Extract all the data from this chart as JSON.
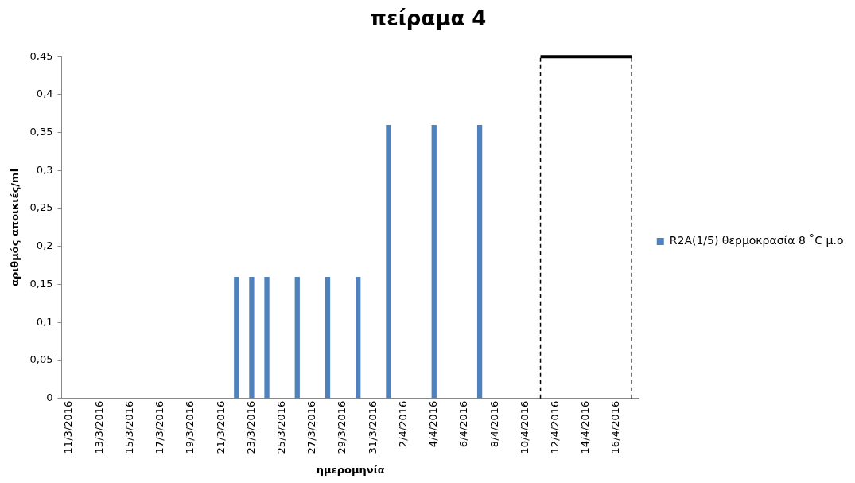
{
  "chart_data": {
    "type": "bar",
    "title": "πείραμα 4",
    "xlabel": "ημερομηνία",
    "ylabel": "αριθμός αποικιές/ml",
    "x": [
      "2016-03-22",
      "2016-03-23",
      "2016-03-24",
      "2016-03-26",
      "2016-03-28",
      "2016-03-30",
      "2016-04-01",
      "2016-04-04",
      "2016-04-07"
    ],
    "series": [
      {
        "name": "R2A(1/5) θερμοκρασία 8 ˚C μ.ο",
        "color": "#4f81bd",
        "values": [
          0.16,
          0.16,
          0.16,
          0.16,
          0.16,
          0.16,
          0.36,
          0.36,
          0.36
        ]
      },
      {
        "type": "line",
        "color": "#000000",
        "x": [
          "2016-04-11",
          "2016-04-17"
        ],
        "values": [
          0.45,
          0.45
        ],
        "marker": "none"
      }
    ],
    "xlim": [
      "2016-03-10T12:00",
      "2016-04-17T12:00"
    ],
    "xticks": [
      {
        "value": "2016-03-11",
        "label": "11/3/2016"
      },
      {
        "value": "2016-03-13",
        "label": "13/3/2016"
      },
      {
        "value": "2016-03-15",
        "label": "15/3/2016"
      },
      {
        "value": "2016-03-17",
        "label": "17/3/2016"
      },
      {
        "value": "2016-03-19",
        "label": "19/3/2016"
      },
      {
        "value": "2016-03-21",
        "label": "21/3/2016"
      },
      {
        "value": "2016-03-23",
        "label": "23/3/2016"
      },
      {
        "value": "2016-03-25",
        "label": "25/3/2016"
      },
      {
        "value": "2016-03-27",
        "label": "27/3/2016"
      },
      {
        "value": "2016-03-29",
        "label": "29/3/2016"
      },
      {
        "value": "2016-03-31",
        "label": "31/3/2016"
      },
      {
        "value": "2016-04-02",
        "label": "2/4/2016"
      },
      {
        "value": "2016-04-04",
        "label": "4/4/2016"
      },
      {
        "value": "2016-04-06",
        "label": "6/4/2016"
      },
      {
        "value": "2016-04-08",
        "label": "8/4/2016"
      },
      {
        "value": "2016-04-10",
        "label": "10/4/2016"
      },
      {
        "value": "2016-04-12",
        "label": "12/4/2016"
      },
      {
        "value": "2016-04-14",
        "label": "14/4/2016"
      },
      {
        "value": "2016-04-16",
        "label": "16/4/2016"
      }
    ],
    "ylim": [
      0,
      0.45
    ],
    "yticks": [
      {
        "value": 0,
        "label": "0"
      },
      {
        "value": 0.05,
        "label": "0,05"
      },
      {
        "value": 0.1,
        "label": "0,1"
      },
      {
        "value": 0.15,
        "label": "0,15"
      },
      {
        "value": 0.2,
        "label": "0,2"
      },
      {
        "value": 0.25,
        "label": "0,25"
      },
      {
        "value": 0.3,
        "label": "0,3"
      },
      {
        "value": 0.35,
        "label": "0,35"
      },
      {
        "value": 0.4,
        "label": "0,4"
      },
      {
        "value": 0.45,
        "label": "0,45"
      }
    ],
    "ref_lines": [
      {
        "axis": "x",
        "value": "2016-04-11",
        "color": "#000000",
        "line_style": "dashed"
      },
      {
        "axis": "x",
        "value": "2016-04-17",
        "color": "#000000",
        "line_style": "dashed"
      }
    ],
    "grid": false,
    "legend": "right"
  }
}
